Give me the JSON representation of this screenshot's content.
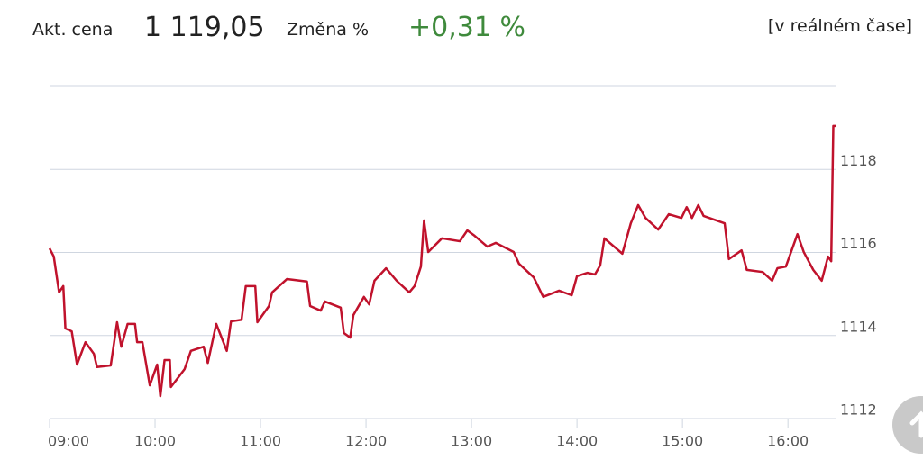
{
  "header": {
    "price_label": "Akt. cena",
    "price": "1 119,05",
    "change_label": "Změna %",
    "change": "+0,31 %",
    "mode": "[v reálném čase]"
  },
  "chart_data": {
    "type": "line",
    "color": "#c0122c",
    "grid": true,
    "xlim": [
      9,
      16.46
    ],
    "ylim": [
      1112,
      1120
    ],
    "xticks": [
      {
        "value": 9,
        "label": "09:00"
      },
      {
        "value": 10,
        "label": "10:00"
      },
      {
        "value": 11,
        "label": "11:00"
      },
      {
        "value": 12,
        "label": "12:00"
      },
      {
        "value": 13,
        "label": "13:00"
      },
      {
        "value": 14,
        "label": "14:00"
      },
      {
        "value": 15,
        "label": "15:00"
      },
      {
        "value": 16,
        "label": "16:00"
      }
    ],
    "yticks": [
      1112,
      1114,
      1116,
      1118
    ],
    "x": [
      9.0,
      9.04,
      9.09,
      9.13,
      9.15,
      9.21,
      9.26,
      9.34,
      9.42,
      9.45,
      9.58,
      9.64,
      9.68,
      9.74,
      9.81,
      9.83,
      9.88,
      9.95,
      10.02,
      10.05,
      10.09,
      10.14,
      10.15,
      10.28,
      10.34,
      10.46,
      10.5,
      10.58,
      10.68,
      10.72,
      10.82,
      10.86,
      10.95,
      10.97,
      11.08,
      11.11,
      11.25,
      11.44,
      11.47,
      11.57,
      11.61,
      11.76,
      11.79,
      11.85,
      11.88,
      11.98,
      12.03,
      12.08,
      12.19,
      12.29,
      12.41,
      12.46,
      12.52,
      12.55,
      12.59,
      12.72,
      12.89,
      12.96,
      13.03,
      13.15,
      13.23,
      13.4,
      13.45,
      13.59,
      13.68,
      13.83,
      13.95,
      14.0,
      14.1,
      14.17,
      14.22,
      14.26,
      14.43,
      14.51,
      14.58,
      14.65,
      14.77,
      14.87,
      14.99,
      15.04,
      15.09,
      15.15,
      15.2,
      15.4,
      15.44,
      15.56,
      15.61,
      15.76,
      15.85,
      15.9,
      15.98,
      16.09,
      16.15,
      16.24,
      16.32,
      16.38,
      16.41,
      16.43,
      16.46
    ],
    "values": [
      1116.1,
      1115.9,
      1115.04,
      1115.19,
      1114.17,
      1114.1,
      1113.3,
      1113.84,
      1113.56,
      1113.24,
      1113.28,
      1114.32,
      1113.73,
      1114.28,
      1114.28,
      1113.84,
      1113.84,
      1112.8,
      1113.3,
      1112.54,
      1113.41,
      1113.41,
      1112.76,
      1113.19,
      1113.63,
      1113.73,
      1113.34,
      1114.28,
      1113.63,
      1114.34,
      1114.38,
      1115.19,
      1115.19,
      1114.32,
      1114.71,
      1115.04,
      1115.36,
      1115.3,
      1114.71,
      1114.6,
      1114.82,
      1114.67,
      1114.06,
      1113.95,
      1114.49,
      1114.93,
      1114.75,
      1115.32,
      1115.62,
      1115.32,
      1115.04,
      1115.19,
      1115.66,
      1116.77,
      1116.01,
      1116.34,
      1116.27,
      1116.53,
      1116.4,
      1116.14,
      1116.23,
      1116.01,
      1115.73,
      1115.4,
      1114.93,
      1115.08,
      1114.97,
      1115.43,
      1115.51,
      1115.47,
      1115.69,
      1116.34,
      1115.97,
      1116.7,
      1117.14,
      1116.83,
      1116.55,
      1116.92,
      1116.83,
      1117.09,
      1116.83,
      1117.14,
      1116.88,
      1116.7,
      1115.84,
      1116.05,
      1115.58,
      1115.53,
      1115.32,
      1115.62,
      1115.66,
      1116.44,
      1116.01,
      1115.58,
      1115.32,
      1115.9,
      1115.79,
      1119.05,
      1119.05
    ]
  }
}
